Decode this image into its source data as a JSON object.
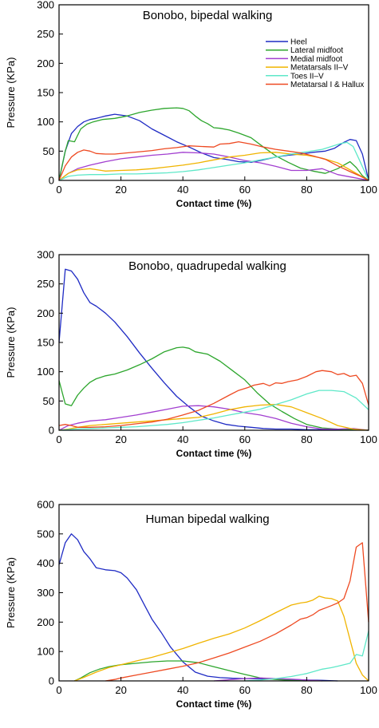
{
  "chart_data": [
    {
      "type": "line",
      "title": "Bonobo, bipedal walking",
      "xlabel": "Contact time (%)",
      "ylabel": "Pressure (KPa)",
      "xlim": [
        0,
        100
      ],
      "ylim": [
        0,
        300
      ],
      "xticks": [
        0,
        20,
        40,
        60,
        80,
        100
      ],
      "yticks": [
        0,
        50,
        100,
        150,
        200,
        250,
        300
      ],
      "grid": false,
      "legend": "top-right",
      "series": [
        {
          "name": "Heel",
          "color": "#1f2bc4",
          "x": [
            0,
            2,
            4,
            6,
            8,
            10,
            12,
            15,
            18,
            22,
            26,
            30,
            34,
            38,
            42,
            46,
            50,
            54,
            58,
            62,
            66,
            70,
            74,
            78,
            82,
            86,
            89,
            92,
            94,
            96,
            98,
            100
          ],
          "y": [
            0,
            50,
            80,
            92,
            100,
            104,
            106,
            110,
            113,
            110,
            102,
            88,
            77,
            66,
            57,
            47,
            39,
            36,
            32,
            31,
            35,
            40,
            43,
            45,
            48,
            50,
            55,
            65,
            70,
            68,
            45,
            0
          ]
        },
        {
          "name": "Lateral midfoot",
          "color": "#2da62d",
          "x": [
            0,
            2,
            3,
            5,
            7,
            9,
            11,
            14,
            18,
            22,
            26,
            30,
            34,
            38,
            40,
            42,
            44,
            46,
            48,
            50,
            52,
            55,
            58,
            62,
            66,
            70,
            74,
            78,
            82,
            86,
            90,
            94,
            96,
            98,
            100
          ],
          "y": [
            0,
            50,
            68,
            66,
            88,
            96,
            100,
            104,
            106,
            110,
            116,
            120,
            123,
            124,
            123,
            119,
            110,
            102,
            97,
            90,
            89,
            86,
            81,
            73,
            57,
            42,
            31,
            21,
            16,
            12,
            20,
            32,
            22,
            8,
            0
          ]
        },
        {
          "name": "Medial midfoot",
          "color": "#a23fd0",
          "x": [
            0,
            3,
            6,
            10,
            15,
            20,
            25,
            30,
            35,
            40,
            45,
            50,
            55,
            60,
            65,
            70,
            75,
            80,
            85,
            90,
            95,
            100
          ],
          "y": [
            0,
            12,
            20,
            26,
            32,
            37,
            40,
            43,
            45,
            48,
            47,
            45,
            40,
            34,
            30,
            24,
            17,
            17,
            20,
            10,
            5,
            0
          ]
        },
        {
          "name": "Metatarsals II–V",
          "color": "#f0b400",
          "x": [
            0,
            3,
            6,
            10,
            15,
            20,
            25,
            30,
            35,
            40,
            45,
            50,
            55,
            60,
            65,
            70,
            75,
            80,
            85,
            90,
            95,
            100
          ],
          "y": [
            0,
            12,
            18,
            20,
            16,
            17,
            18,
            20,
            23,
            26,
            30,
            35,
            40,
            43,
            47,
            48,
            45,
            43,
            38,
            30,
            15,
            0
          ]
        },
        {
          "name": "Toes II–V",
          "color": "#5ee8c8",
          "x": [
            0,
            3,
            6,
            10,
            15,
            20,
            25,
            30,
            35,
            40,
            45,
            50,
            55,
            60,
            65,
            70,
            75,
            80,
            85,
            88,
            91,
            93,
            95,
            97,
            100
          ],
          "y": [
            0,
            7,
            9,
            10,
            10,
            11,
            11,
            12,
            13,
            15,
            18,
            22,
            26,
            30,
            35,
            40,
            45,
            49,
            53,
            58,
            63,
            65,
            58,
            35,
            0
          ]
        },
        {
          "name": "Metatarsal I & Hallux",
          "color": "#ee4a22",
          "x": [
            0,
            2,
            4,
            6,
            8,
            10,
            12,
            15,
            18,
            22,
            26,
            30,
            34,
            38,
            42,
            46,
            50,
            52,
            55,
            58,
            62,
            66,
            70,
            74,
            78,
            82,
            86,
            90,
            94,
            97,
            100
          ],
          "y": [
            0,
            25,
            40,
            48,
            52,
            50,
            46,
            45,
            45,
            47,
            49,
            51,
            54,
            56,
            59,
            58,
            57,
            62,
            63,
            66,
            62,
            57,
            53,
            50,
            47,
            42,
            36,
            25,
            15,
            8,
            0
          ]
        }
      ]
    },
    {
      "type": "line",
      "title": "Bonobo, quadrupedal walking",
      "xlabel": "Contact time (%)",
      "ylabel": "Pressure (KPa)",
      "xlim": [
        0,
        100
      ],
      "ylim": [
        0,
        300
      ],
      "xticks": [
        0,
        20,
        40,
        60,
        80,
        100
      ],
      "yticks": [
        0,
        50,
        100,
        150,
        200,
        250,
        300
      ],
      "grid": false,
      "series": [
        {
          "name": "Heel",
          "color": "#1f2bc4",
          "x": [
            0,
            2,
            4,
            6,
            8,
            10,
            12,
            15,
            18,
            22,
            26,
            30,
            34,
            38,
            42,
            46,
            50,
            54,
            58,
            62,
            66,
            70,
            75,
            80,
            85,
            90,
            95,
            100
          ],
          "y": [
            150,
            275,
            272,
            258,
            235,
            218,
            212,
            200,
            185,
            160,
            132,
            106,
            81,
            58,
            40,
            24,
            16,
            10,
            7,
            5,
            3,
            2,
            2,
            1,
            1,
            1,
            1,
            0
          ]
        },
        {
          "name": "Lateral midfoot",
          "color": "#2da62d",
          "x": [
            0,
            2,
            4,
            6,
            8,
            10,
            12,
            15,
            18,
            22,
            26,
            30,
            34,
            38,
            40,
            42,
            44,
            48,
            52,
            56,
            60,
            64,
            68,
            72,
            76,
            80,
            85,
            90,
            95,
            100
          ],
          "y": [
            85,
            45,
            42,
            60,
            72,
            82,
            88,
            93,
            96,
            103,
            112,
            122,
            134,
            141,
            142,
            140,
            134,
            130,
            118,
            102,
            86,
            64,
            45,
            32,
            20,
            10,
            4,
            2,
            1,
            0
          ]
        },
        {
          "name": "Medial midfoot",
          "color": "#a23fd0",
          "x": [
            0,
            3,
            6,
            10,
            15,
            20,
            25,
            30,
            35,
            40,
            45,
            50,
            55,
            60,
            65,
            70,
            75,
            80,
            85,
            90,
            95,
            100
          ],
          "y": [
            0,
            8,
            12,
            16,
            18,
            22,
            26,
            31,
            36,
            41,
            42,
            40,
            36,
            30,
            26,
            20,
            12,
            6,
            2,
            2,
            3,
            0
          ]
        },
        {
          "name": "Metatarsals II–V",
          "color": "#f0b400",
          "x": [
            0,
            3,
            6,
            10,
            15,
            20,
            25,
            30,
            35,
            40,
            45,
            50,
            55,
            60,
            65,
            70,
            75,
            80,
            85,
            90,
            95,
            100
          ],
          "y": [
            0,
            2,
            5,
            8,
            10,
            12,
            14,
            16,
            18,
            20,
            22,
            28,
            35,
            40,
            43,
            44,
            40,
            30,
            20,
            8,
            2,
            0
          ]
        },
        {
          "name": "Toes II–V",
          "color": "#5ee8c8",
          "x": [
            0,
            5,
            10,
            15,
            20,
            25,
            30,
            35,
            40,
            45,
            50,
            55,
            60,
            65,
            70,
            75,
            80,
            84,
            88,
            92,
            96,
            100
          ],
          "y": [
            0,
            2,
            3,
            4,
            5,
            6,
            8,
            10,
            13,
            17,
            21,
            26,
            31,
            36,
            44,
            52,
            62,
            68,
            68,
            66,
            55,
            35
          ]
        },
        {
          "name": "Metatarsal I & Hallux",
          "color": "#ee4a22",
          "x": [
            0,
            2,
            4,
            6,
            10,
            15,
            20,
            25,
            30,
            35,
            40,
            45,
            50,
            55,
            58,
            61,
            63,
            66,
            68,
            70,
            72,
            74,
            77,
            80,
            83,
            85,
            88,
            90,
            92,
            94,
            96,
            98,
            100
          ],
          "y": [
            8,
            10,
            8,
            5,
            5,
            6,
            8,
            11,
            14,
            19,
            26,
            34,
            46,
            60,
            68,
            73,
            77,
            80,
            76,
            81,
            80,
            83,
            86,
            92,
            100,
            102,
            100,
            95,
            97,
            92,
            94,
            80,
            43
          ]
        }
      ]
    },
    {
      "type": "line",
      "title": "Human bipedal walking",
      "xlabel": "Contact time (%)",
      "ylabel": "Pressure (KPa)",
      "xlim": [
        0,
        100
      ],
      "ylim": [
        0,
        600
      ],
      "xticks": [
        0,
        20,
        40,
        60,
        80,
        100
      ],
      "yticks": [
        0,
        100,
        200,
        300,
        400,
        500,
        600
      ],
      "grid": false,
      "series": [
        {
          "name": "Heel",
          "color": "#1f2bc4",
          "x": [
            0,
            2,
            4,
            6,
            8,
            10,
            12,
            15,
            18,
            20,
            22,
            25,
            28,
            30,
            33,
            36,
            40,
            44,
            48,
            52,
            56,
            60,
            65,
            70,
            75,
            80,
            85,
            90
          ],
          "y": [
            395,
            470,
            500,
            480,
            440,
            415,
            385,
            378,
            375,
            368,
            350,
            310,
            250,
            210,
            165,
            115,
            65,
            30,
            16,
            11,
            9,
            8,
            7,
            6,
            5,
            3,
            2,
            0
          ]
        },
        {
          "name": "Lateral midfoot",
          "color": "#2da62d",
          "x": [
            5,
            7,
            10,
            13,
            16,
            20,
            25,
            30,
            35,
            40,
            45,
            50,
            55,
            60,
            65,
            70,
            75,
            80
          ],
          "y": [
            0,
            10,
            28,
            40,
            48,
            55,
            60,
            65,
            68,
            68,
            62,
            48,
            35,
            22,
            10,
            5,
            2,
            0
          ]
        },
        {
          "name": "Medial midfoot",
          "color": "#a23fd0",
          "x": [
            50,
            55,
            60,
            65,
            70,
            75,
            80,
            85
          ],
          "y": [
            0,
            4,
            8,
            10,
            8,
            6,
            3,
            0
          ]
        },
        {
          "name": "Metatarsals II–V",
          "color": "#f0b400",
          "x": [
            5,
            8,
            12,
            16,
            20,
            25,
            30,
            35,
            40,
            45,
            50,
            55,
            60,
            65,
            70,
            75,
            78,
            80,
            82,
            84,
            86,
            88,
            90,
            92,
            94,
            96,
            98,
            100
          ],
          "y": [
            0,
            12,
            30,
            45,
            55,
            68,
            80,
            95,
            110,
            128,
            145,
            160,
            180,
            205,
            232,
            258,
            265,
            268,
            275,
            288,
            282,
            280,
            272,
            220,
            140,
            60,
            20,
            0
          ]
        },
        {
          "name": "Toes II–V",
          "color": "#5ee8c8",
          "x": [
            60,
            65,
            70,
            75,
            80,
            85,
            88,
            90,
            92,
            94,
            96,
            98,
            100
          ],
          "y": [
            0,
            3,
            8,
            15,
            25,
            40,
            45,
            50,
            55,
            60,
            90,
            85,
            170
          ]
        },
        {
          "name": "Metatarsal I & Hallux",
          "color": "#ee4a22",
          "x": [
            15,
            18,
            20,
            25,
            30,
            35,
            40,
            45,
            50,
            55,
            60,
            65,
            70,
            75,
            78,
            80,
            82,
            84,
            86,
            88,
            90,
            92,
            94,
            96,
            98,
            100
          ],
          "y": [
            0,
            5,
            10,
            20,
            30,
            40,
            50,
            62,
            78,
            95,
            115,
            135,
            160,
            190,
            210,
            215,
            225,
            240,
            248,
            256,
            265,
            280,
            340,
            455,
            470,
            200
          ]
        }
      ]
    }
  ]
}
